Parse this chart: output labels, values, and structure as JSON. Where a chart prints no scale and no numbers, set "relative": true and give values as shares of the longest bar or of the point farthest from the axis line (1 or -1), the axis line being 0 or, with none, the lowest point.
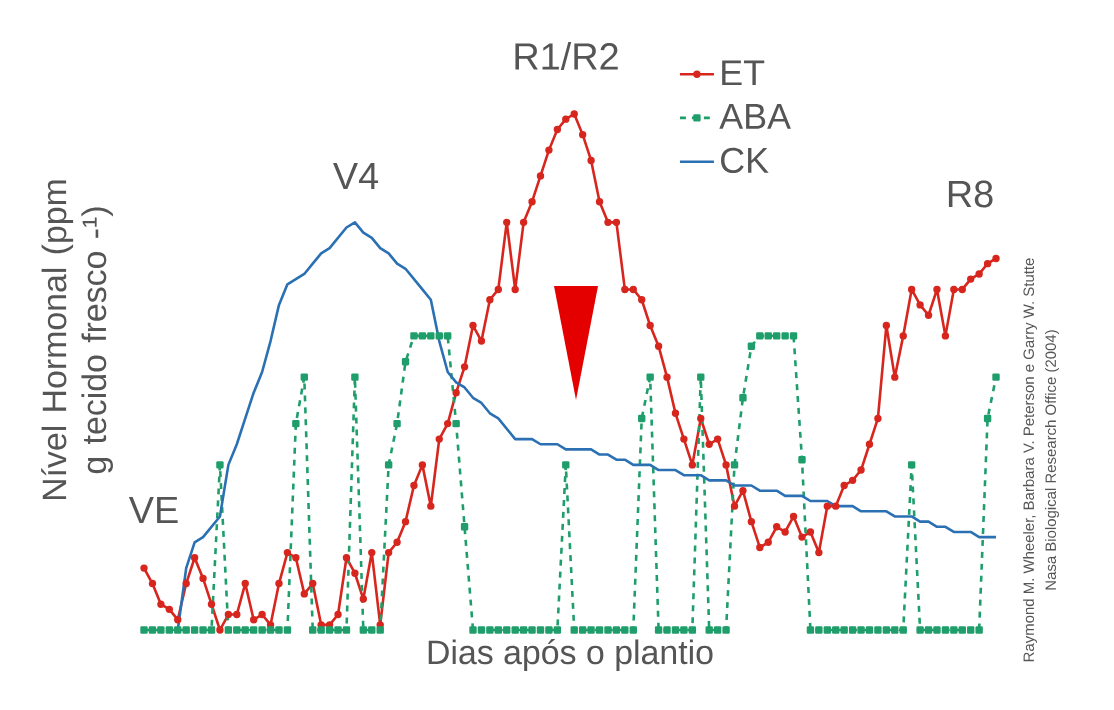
{
  "chart_data": {
    "type": "line",
    "relative": true,
    "xlabel": "Dias após o plantio",
    "ylabel": "Nível Hormonal (ppm g tecido fresco -¹)",
    "legend": "top right",
    "categories": [
      null,
      null,
      null,
      null,
      null,
      null,
      null,
      null,
      null,
      null,
      null,
      null,
      null,
      null,
      null,
      null,
      null,
      null,
      null,
      null,
      null,
      null,
      null,
      null,
      null,
      null,
      null,
      null,
      null,
      null,
      null,
      null,
      null,
      null,
      null,
      null,
      null,
      null,
      null,
      null,
      null,
      null,
      null,
      null,
      null,
      null,
      null,
      null,
      null,
      null,
      null,
      null,
      null,
      null,
      null,
      null,
      null,
      null,
      null,
      null,
      null,
      null,
      null,
      null,
      null,
      null,
      null,
      null,
      null,
      null,
      null,
      null,
      null,
      null,
      null,
      null,
      null,
      null,
      null,
      null,
      null,
      null,
      null,
      null,
      null,
      null,
      null,
      null,
      null,
      null,
      null,
      null,
      null,
      null,
      null,
      null,
      null,
      null,
      null,
      null,
      null,
      null
    ],
    "series": [
      {
        "name": "ET",
        "color": "#d7261e",
        "marker": "circle",
        "line_style": "solid",
        "values": [
          0.12,
          0.09,
          0.05,
          0.04,
          0.02,
          0.09,
          0.14,
          0.1,
          0.05,
          0,
          0.03,
          0.03,
          0.09,
          0.02,
          0.03,
          0.01,
          0.09,
          0.15,
          0.14,
          0.07,
          0.09,
          0.01,
          0.01,
          0.03,
          0.14,
          0.11,
          0.06,
          0.15,
          0.01,
          0.15,
          0.17,
          0.21,
          0.28,
          0.32,
          0.24,
          0.37,
          0.4,
          0.46,
          0.51,
          0.59,
          0.56,
          0.64,
          0.66,
          0.79,
          0.66,
          0.79,
          0.83,
          0.88,
          0.93,
          0.97,
          0.99,
          1,
          0.96,
          0.91,
          0.83,
          0.79,
          0.79,
          0.66,
          0.66,
          0.64,
          0.59,
          0.55,
          0.49,
          0.42,
          0.37,
          0.32,
          0.41,
          0.36,
          0.37,
          0.32,
          0.24,
          0.27,
          0.21,
          0.16,
          0.17,
          0.2,
          0.19,
          0.22,
          0.18,
          0.19,
          0.15,
          0.24,
          0.24,
          0.28,
          0.29,
          0.31,
          0.36,
          0.41,
          0.59,
          0.49,
          0.57,
          0.66,
          0.63,
          0.61,
          0.66,
          0.57,
          0.66,
          0.66,
          0.68,
          0.69,
          0.71,
          0.72
        ]
      },
      {
        "name": "ABA",
        "color": "#1f9e6b",
        "marker": "square",
        "line_style": "dashed",
        "values": [
          0,
          0,
          0,
          0,
          0,
          0,
          0,
          0,
          0,
          0.32,
          0,
          0,
          0,
          0,
          0,
          0,
          0,
          0,
          0.4,
          0.49,
          0,
          0,
          0,
          0,
          0,
          0.49,
          0,
          0,
          0,
          0.32,
          0.4,
          0.52,
          0.57,
          0.57,
          0.57,
          0.57,
          0.57,
          0.4,
          0.2,
          0,
          0,
          0,
          0,
          0,
          0,
          0,
          0,
          0,
          0,
          0,
          0.32,
          0,
          0,
          0,
          0,
          0,
          0,
          0,
          0,
          0.41,
          0.49,
          0,
          0,
          0,
          0,
          0,
          0.49,
          0,
          0,
          0,
          0.32,
          0.45,
          0.55,
          0.57,
          0.57,
          0.57,
          0.57,
          0.57,
          0.33,
          0,
          0,
          0,
          0,
          0,
          0,
          0,
          0,
          0,
          0,
          0,
          0,
          0.32,
          0,
          0,
          0,
          0,
          0,
          0,
          0,
          0,
          0.41,
          0.49
        ]
      },
      {
        "name": "CK",
        "color": "#2b70b3",
        "marker": "none",
        "line_style": "solid",
        "values": [
          null,
          null,
          null,
          null,
          0,
          0.12,
          0.17,
          0.18,
          0.2,
          0.22,
          0.32,
          0.36,
          0.41,
          0.46,
          0.5,
          0.56,
          0.63,
          0.67,
          0.68,
          0.69,
          0.71,
          0.73,
          0.74,
          0.76,
          0.78,
          0.79,
          0.77,
          0.76,
          0.74,
          0.73,
          0.71,
          0.7,
          0.68,
          0.66,
          0.64,
          0.56,
          0.5,
          0.48,
          0.47,
          0.45,
          0.44,
          0.42,
          0.41,
          0.39,
          0.37,
          0.37,
          0.37,
          0.36,
          0.36,
          0.36,
          0.35,
          0.35,
          0.35,
          0.35,
          0.34,
          0.34,
          0.33,
          0.33,
          0.32,
          0.32,
          0.32,
          0.31,
          0.31,
          0.31,
          0.3,
          0.3,
          0.3,
          0.29,
          0.29,
          0.29,
          0.28,
          0.28,
          0.28,
          0.27,
          0.27,
          0.27,
          0.26,
          0.26,
          0.26,
          0.25,
          0.25,
          0.25,
          0.24,
          0.24,
          0.24,
          0.23,
          0.23,
          0.23,
          0.23,
          0.22,
          0.22,
          0.22,
          0.21,
          0.21,
          0.2,
          0.2,
          0.19,
          0.19,
          0.19,
          0.18,
          0.18,
          0.18
        ]
      }
    ],
    "annotations": [
      "VE",
      "V4",
      "R1/R2",
      "R8",
      "Raymond M. Wheeler, Barbara V. Peterson e Garry W. Stutte",
      "Nasa Biological Research Office (2004)"
    ]
  }
}
